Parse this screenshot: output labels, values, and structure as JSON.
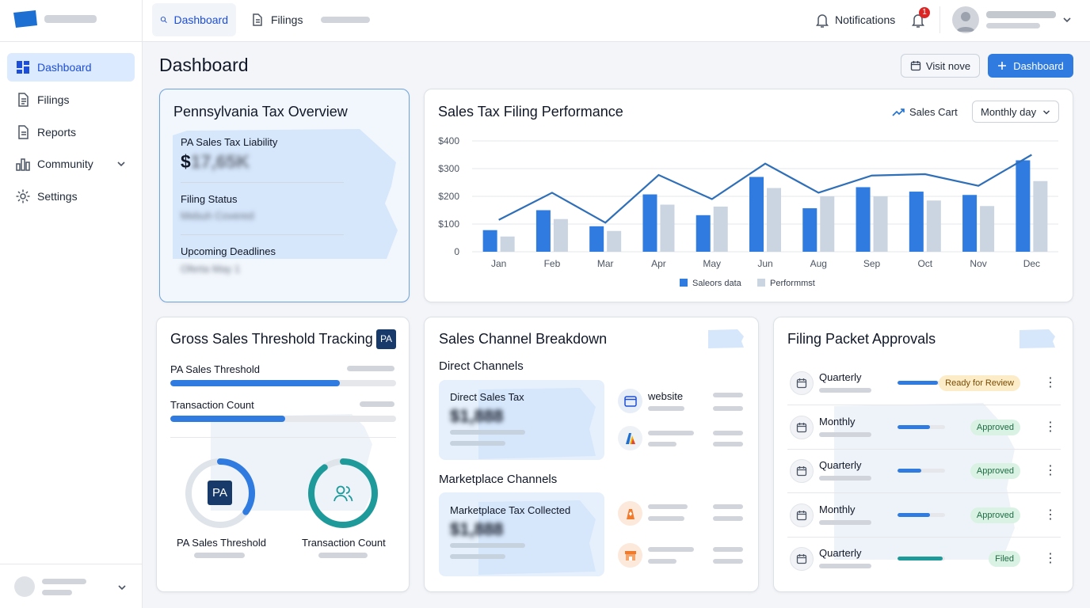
{
  "topbar": {
    "tabs": [
      {
        "label": "Dashboard"
      },
      {
        "label": "Filings"
      }
    ],
    "notifications_label": "Notifications",
    "notification_count": "1"
  },
  "sidebar": {
    "items": [
      {
        "label": "Dashboard",
        "icon": "dashboard-icon"
      },
      {
        "label": "Filings",
        "icon": "document-icon"
      },
      {
        "label": "Reports",
        "icon": "report-icon"
      },
      {
        "label": "Community",
        "icon": "bar-chart-icon"
      },
      {
        "label": "Settings",
        "icon": "gear-icon"
      }
    ]
  },
  "page": {
    "title": "Dashboard",
    "visit_button": "Visit nove",
    "primary_button": "Dashboard"
  },
  "overview": {
    "title": "Pennsylvania Tax Overview",
    "liability_label": "PA Sales Tax Liability",
    "liability_value": "$17,65K",
    "status_label": "Filing Status",
    "status_value": "Mebuh Covered",
    "deadlines_label": "Upcoming Deadlines",
    "deadlines_value": "Oferta May 1"
  },
  "performance": {
    "title": "Sales Tax Filing Performance",
    "sales_cart": "Sales Cart",
    "period_select": "Monthly day"
  },
  "chart_data": {
    "type": "bar",
    "title": "Sales Tax Filing Performance",
    "categories": [
      "Jan",
      "Feb",
      "Mar",
      "Apr",
      "May",
      "Jun",
      "Aug",
      "Sep",
      "Oct",
      "Nov",
      "Dec"
    ],
    "yticks": [
      "$400",
      "$300",
      "$200",
      "$100",
      "0"
    ],
    "ylim": [
      0,
      400
    ],
    "series": [
      {
        "name": "Saleors data",
        "type": "bar",
        "color": "#2f7be0",
        "values": [
          78,
          150,
          92,
          207,
          132,
          270,
          157,
          233,
          217,
          205,
          330
        ]
      },
      {
        "name": "Performmst",
        "type": "bar",
        "color": "#cbd5e1",
        "values": [
          55,
          118,
          75,
          170,
          163,
          230,
          200,
          200,
          185,
          165,
          255
        ]
      },
      {
        "type": "line",
        "color": "#2f6fb8",
        "values": [
          115,
          213,
          105,
          277,
          190,
          318,
          213,
          275,
          280,
          238,
          350
        ]
      }
    ],
    "legend": "bottom",
    "grid": true
  },
  "threshold": {
    "title": "Gross Sales Threshold Tracking",
    "badge": "PA",
    "items": [
      {
        "label": "PA Sales Threshold",
        "progress": 0.75,
        "color": "#2f7be0"
      },
      {
        "label": "Transaction Count",
        "progress": 0.51,
        "color": "#2f7be0"
      }
    ],
    "donuts": [
      {
        "label": "PA Sales Threshold",
        "center": "PA",
        "progress": 0.35,
        "color": "#2f7be0"
      },
      {
        "label": "Transaction Count",
        "progress": 0.9,
        "color": "#1e9a9a"
      }
    ]
  },
  "channels": {
    "title": "Sales Channel Breakdown",
    "direct_title": "Direct Channels",
    "direct_label": "Direct Sales Tax",
    "direct_value": "$1,888",
    "website_label": "website",
    "marketplace_title": "Marketplace Channels",
    "marketplace_label": "Marketplace Tax Collected",
    "marketplace_value": "$1,888"
  },
  "approvals": {
    "title": "Filing Packet Approvals",
    "rows": [
      {
        "label": "Quarterly",
        "progress": 0.85,
        "color": "#2f7be0",
        "status": "Ready for Review",
        "status_bg": "#fdecc8",
        "status_fg": "#7a4b00"
      },
      {
        "label": "Monthly",
        "progress": 0.68,
        "color": "#2f7be0",
        "status": "Approved",
        "status_bg": "#d9f2e3",
        "status_fg": "#1e6b43"
      },
      {
        "label": "Quarterly",
        "progress": 0.5,
        "color": "#2f7be0",
        "status": "Approved",
        "status_bg": "#d9f2e3",
        "status_fg": "#1e6b43"
      },
      {
        "label": "Monthly",
        "progress": 0.68,
        "color": "#2f7be0",
        "status": "Approved",
        "status_bg": "#d9f2e3",
        "status_fg": "#1e6b43"
      },
      {
        "label": "Quarterly",
        "progress": 0.95,
        "color": "#1e9a9a",
        "status": "Filed",
        "status_bg": "#d9f2e3",
        "status_fg": "#1e6b43"
      }
    ]
  }
}
